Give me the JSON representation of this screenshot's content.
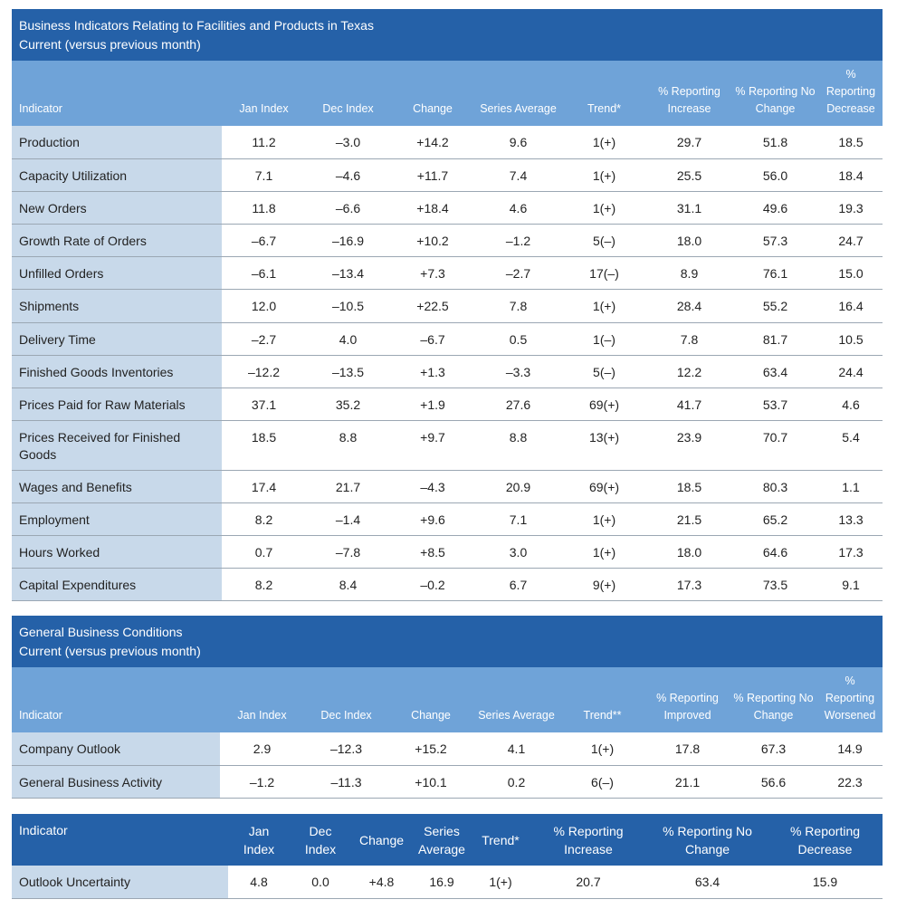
{
  "colors": {
    "title_bg": "#2561a8",
    "header_bg": "#6fa3d8",
    "indicator_bg": "#c8d9ea",
    "row_border": "#9ba7b3"
  },
  "section1": {
    "title": "Business Indicators Relating to Facilities and Products in Texas",
    "subtitle": "Current (versus previous month)",
    "columns": [
      "Indicator",
      "Jan Index",
      "Dec Index",
      "Change",
      "Series Average",
      "Trend*",
      "% Reporting Increase",
      "% Reporting No Change",
      "% Reporting Decrease"
    ],
    "rows": [
      [
        "Production",
        "11.2",
        "–3.0",
        "+14.2",
        "9.6",
        "1(+)",
        "29.7",
        "51.8",
        "18.5"
      ],
      [
        "Capacity Utilization",
        "7.1",
        "–4.6",
        "+11.7",
        "7.4",
        "1(+)",
        "25.5",
        "56.0",
        "18.4"
      ],
      [
        "New Orders",
        "11.8",
        "–6.6",
        "+18.4",
        "4.6",
        "1(+)",
        "31.1",
        "49.6",
        "19.3"
      ],
      [
        "Growth Rate of Orders",
        "–6.7",
        "–16.9",
        "+10.2",
        "–1.2",
        "5(–)",
        "18.0",
        "57.3",
        "24.7"
      ],
      [
        "Unfilled Orders",
        "–6.1",
        "–13.4",
        "+7.3",
        "–2.7",
        "17(–)",
        "8.9",
        "76.1",
        "15.0"
      ],
      [
        "Shipments",
        "12.0",
        "–10.5",
        "+22.5",
        "7.8",
        "1(+)",
        "28.4",
        "55.2",
        "16.4"
      ],
      [
        "Delivery Time",
        "–2.7",
        "4.0",
        "–6.7",
        "0.5",
        "1(–)",
        "7.8",
        "81.7",
        "10.5"
      ],
      [
        "Finished Goods Inventories",
        "–12.2",
        "–13.5",
        "+1.3",
        "–3.3",
        "5(–)",
        "12.2",
        "63.4",
        "24.4"
      ],
      [
        "Prices Paid for Raw Materials",
        "37.1",
        "35.2",
        "+1.9",
        "27.6",
        "69(+)",
        "41.7",
        "53.7",
        "4.6"
      ],
      [
        "Prices Received for Finished Goods",
        "18.5",
        "8.8",
        "+9.7",
        "8.8",
        "13(+)",
        "23.9",
        "70.7",
        "5.4"
      ],
      [
        "Wages and Benefits",
        "17.4",
        "21.7",
        "–4.3",
        "20.9",
        "69(+)",
        "18.5",
        "80.3",
        "1.1"
      ],
      [
        "Employment",
        "8.2",
        "–1.4",
        "+9.6",
        "7.1",
        "1(+)",
        "21.5",
        "65.2",
        "13.3"
      ],
      [
        "Hours Worked",
        "0.7",
        "–7.8",
        "+8.5",
        "3.0",
        "1(+)",
        "18.0",
        "64.6",
        "17.3"
      ],
      [
        "Capital Expenditures",
        "8.2",
        "8.4",
        "–0.2",
        "6.7",
        "9(+)",
        "17.3",
        "73.5",
        "9.1"
      ]
    ]
  },
  "section2": {
    "title": "General Business Conditions",
    "subtitle": "Current (versus previous month)",
    "columns": [
      "Indicator",
      "Jan Index",
      "Dec Index",
      "Change",
      "Series Average",
      "Trend**",
      "% Reporting Improved",
      "% Reporting No Change",
      "% Reporting Worsened"
    ],
    "rows": [
      [
        "Company Outlook",
        "2.9",
        "–12.3",
        "+15.2",
        "4.1",
        "1(+)",
        "17.8",
        "67.3",
        "14.9"
      ],
      [
        "General Business Activity",
        "–1.2",
        "–11.3",
        "+10.1",
        "0.2",
        "6(–)",
        "21.1",
        "56.6",
        "22.3"
      ]
    ]
  },
  "section3": {
    "columns": [
      "Indicator",
      "Jan Index",
      "Dec Index",
      "Change",
      "Series Average",
      "Trend*",
      "% Reporting Increase",
      "% Reporting No Change",
      "% Reporting Decrease"
    ],
    "rows": [
      [
        "Outlook Uncertainty",
        "4.8",
        "0.0",
        "+4.8",
        "16.9",
        "1(+)",
        "20.7",
        "63.4",
        "15.9"
      ]
    ]
  }
}
